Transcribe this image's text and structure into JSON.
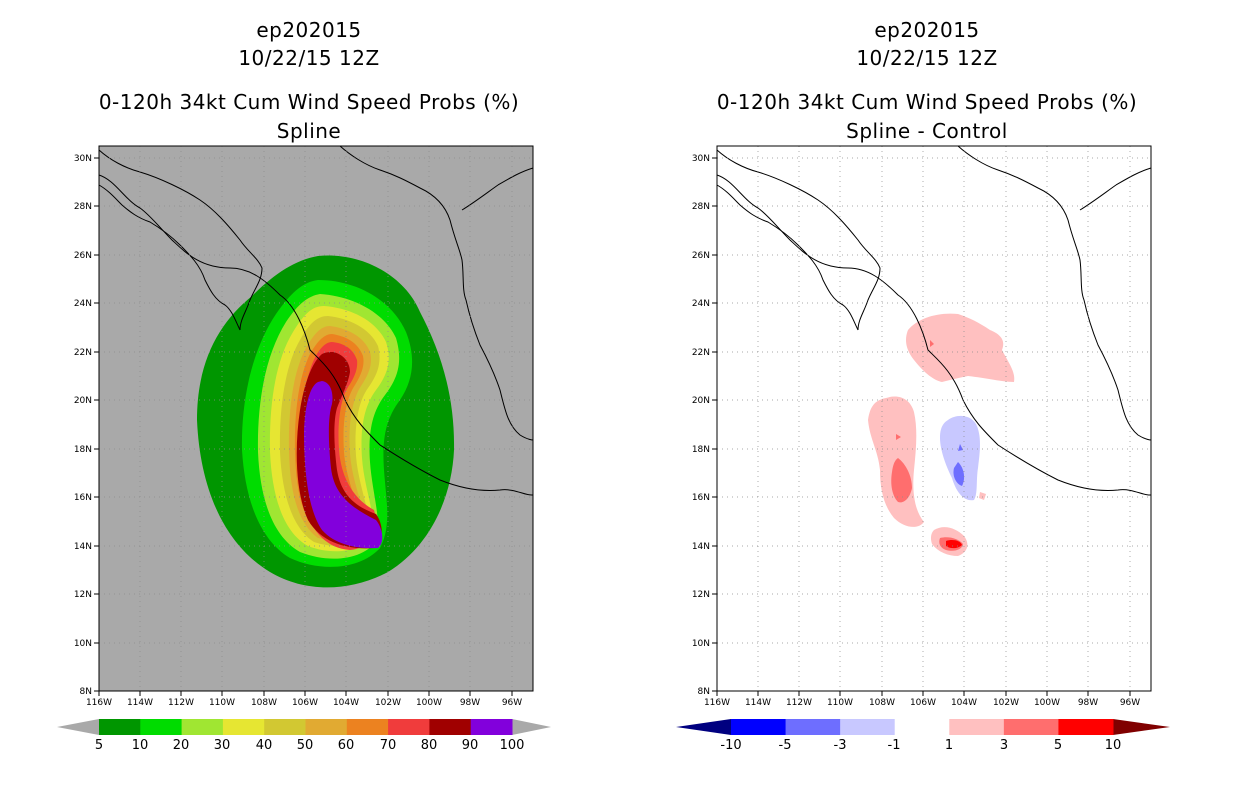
{
  "chart_data": [
    {
      "type": "heatmap",
      "storm": "ep202015",
      "datetime": "10/22/15 12Z",
      "title": "0-120h 34kt Cum Wind Speed Probs (%)",
      "subtitle": "Spline",
      "xticks": [
        "116W",
        "114W",
        "112W",
        "110W",
        "108W",
        "106W",
        "104W",
        "102W",
        "100W",
        "98W",
        "96W"
      ],
      "yticks": [
        "8N",
        "10N",
        "12N",
        "14N",
        "16N",
        "18N",
        "20N",
        "22N",
        "24N",
        "26N",
        "28N",
        "30N"
      ],
      "xlim": [
        -116,
        -95
      ],
      "ylim": [
        8,
        30.5
      ],
      "colorbar": {
        "labels": [
          "5",
          "10",
          "20",
          "30",
          "40",
          "50",
          "60",
          "70",
          "80",
          "90",
          "100"
        ],
        "colors": [
          "#009600",
          "#00dc00",
          "#a0e632",
          "#e6e632",
          "#d2c832",
          "#e1aa32",
          "#ec8220",
          "#f03c3c",
          "#a00000",
          "#8200dc"
        ]
      }
    },
    {
      "type": "heatmap",
      "storm": "ep202015",
      "datetime": "10/22/15 12Z",
      "title": "0-120h 34kt Cum Wind Speed Probs (%)",
      "subtitle": "Spline - Control",
      "xticks": [
        "116W",
        "114W",
        "112W",
        "110W",
        "108W",
        "106W",
        "104W",
        "102W",
        "100W",
        "98W",
        "96W"
      ],
      "yticks": [
        "8N",
        "10N",
        "12N",
        "14N",
        "16N",
        "18N",
        "20N",
        "22N",
        "24N",
        "26N",
        "28N",
        "30N"
      ],
      "xlim": [
        -116,
        -95
      ],
      "ylim": [
        8,
        30.5
      ],
      "colorbar": {
        "labels": [
          "-10",
          "-5",
          "-3",
          "-1",
          "1",
          "3",
          "5",
          "10"
        ],
        "colors": [
          "#0000ff",
          "#6e6eff",
          "#c8c8ff",
          "#ffffff",
          "#ffc0c0",
          "#ff6e6e",
          "#ff0000"
        ]
      }
    }
  ]
}
